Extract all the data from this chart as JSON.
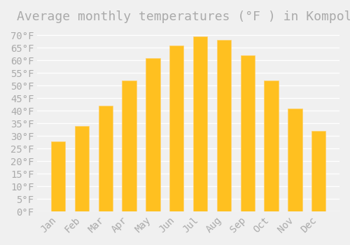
{
  "title": "Average monthly temperatures (°F ) in Kompolt",
  "months": [
    "Jan",
    "Feb",
    "Mar",
    "Apr",
    "May",
    "Jun",
    "Jul",
    "Aug",
    "Sep",
    "Oct",
    "Nov",
    "Dec"
  ],
  "values": [
    28,
    34,
    42,
    52,
    61,
    66,
    69.5,
    68,
    62,
    52,
    41,
    32
  ],
  "bar_color": "#FFC020",
  "bar_edge_color": "#FFD070",
  "background_color": "#F0F0F0",
  "grid_color": "#FFFFFF",
  "text_color": "#AAAAAA",
  "ylim": [
    0,
    72
  ],
  "yticks": [
    0,
    5,
    10,
    15,
    20,
    25,
    30,
    35,
    40,
    45,
    50,
    55,
    60,
    65,
    70
  ],
  "title_fontsize": 13,
  "tick_fontsize": 10
}
